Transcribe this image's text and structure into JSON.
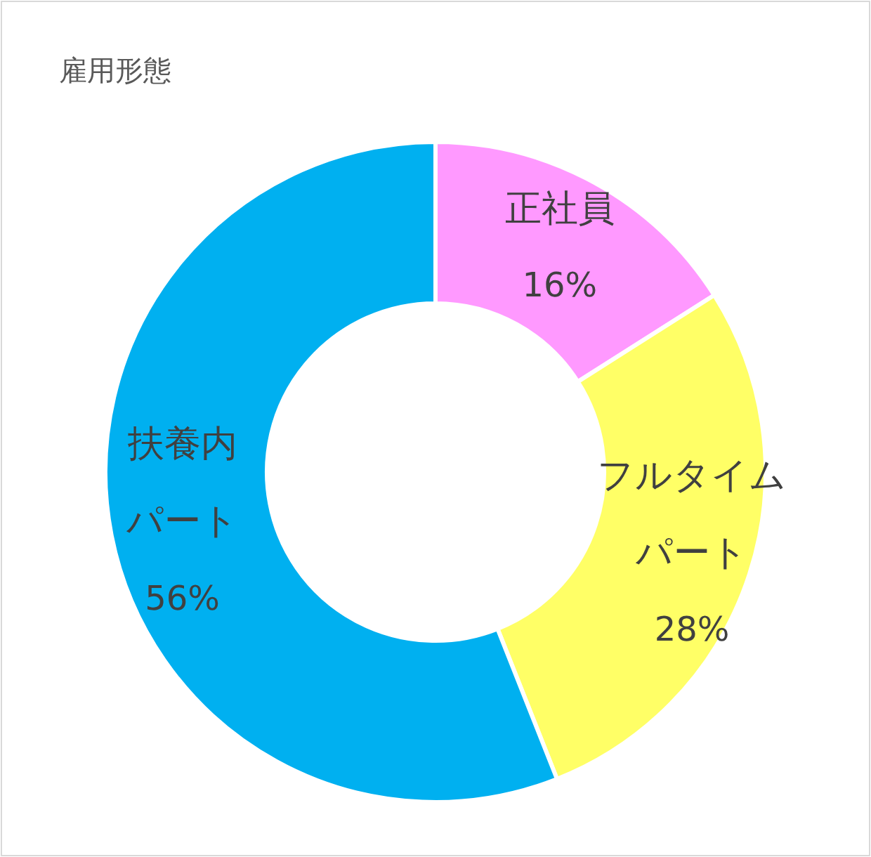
{
  "chart_data": {
    "type": "donut",
    "title": "雇用形態",
    "categories": [
      "正社員",
      "フルタイムパート",
      "扶養内パート"
    ],
    "values": [
      16,
      28,
      56
    ],
    "colors": [
      "#ff99ff",
      "#ffff66",
      "#00b0f0"
    ],
    "value_labels": [
      "16%",
      "28%",
      "56%"
    ]
  }
}
